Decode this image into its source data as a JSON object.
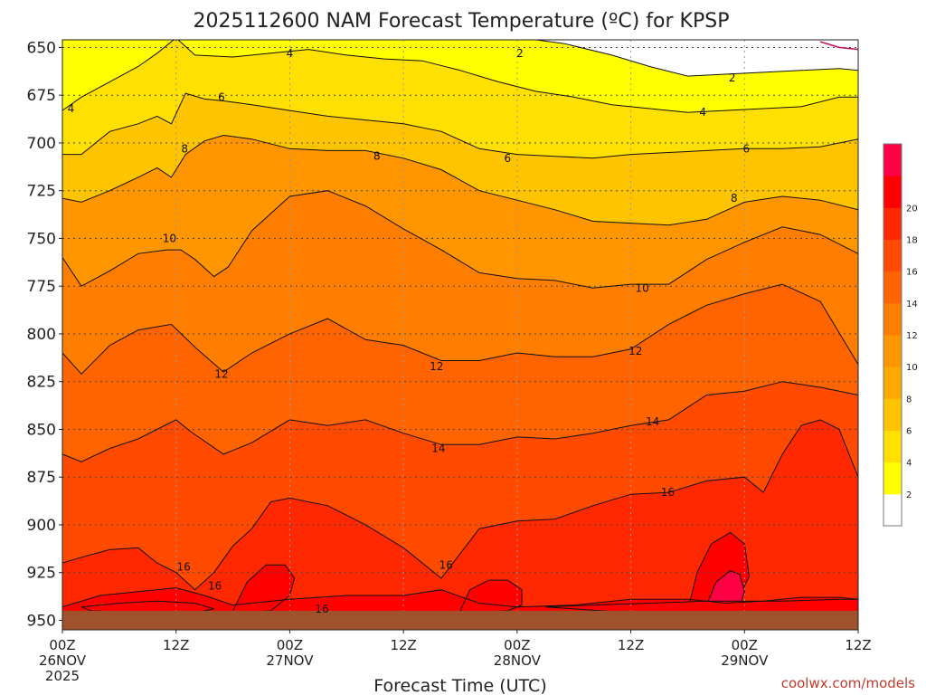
{
  "chart_data": {
    "type": "heatmap",
    "title": "2025112600 NAM Forecast Temperature (ºC) for KPSP",
    "xlabel": "Forecast Time (UTC)",
    "ylabel": "",
    "credit": "coolwx.com/models",
    "x_ticks": [
      {
        "hours": 0,
        "line1": "00Z",
        "line2": "26NOV",
        "line3": "2025"
      },
      {
        "hours": 12,
        "line1": "12Z",
        "line2": "",
        "line3": ""
      },
      {
        "hours": 24,
        "line1": "00Z",
        "line2": "27NOV",
        "line3": ""
      },
      {
        "hours": 36,
        "line1": "12Z",
        "line2": "",
        "line3": ""
      },
      {
        "hours": 48,
        "line1": "00Z",
        "line2": "28NOV",
        "line3": ""
      },
      {
        "hours": 60,
        "line1": "12Z",
        "line2": "",
        "line3": ""
      },
      {
        "hours": 72,
        "line1": "00Z",
        "line2": "29NOV",
        "line3": ""
      },
      {
        "hours": 84,
        "line1": "12Z",
        "line2": "",
        "line3": ""
      }
    ],
    "xlim_hours": [
      0,
      84
    ],
    "y_ticks": [
      650,
      675,
      700,
      725,
      750,
      775,
      800,
      825,
      850,
      875,
      900,
      925,
      950
    ],
    "ylim_hpa": [
      646,
      955
    ],
    "grid": true,
    "colorbar": {
      "labels": [
        "2",
        "4",
        "6",
        "8",
        "10",
        "12",
        "14",
        "16",
        "18",
        "20"
      ],
      "colors": [
        "#ffffff",
        "#ffff00",
        "#ffe000",
        "#ffc400",
        "#ffaa00",
        "#ff9600",
        "#ff7e00",
        "#ff6400",
        "#ff4a00",
        "#ff2800",
        "#ff0000",
        "#ff0044"
      ]
    },
    "surface_hpa": 945,
    "surface_color": "#a0522d",
    "isotherms": [
      {
        "value": "2",
        "t": [
          50,
          53,
          58,
          62,
          66,
          70,
          74,
          78,
          82,
          84
        ],
        "p": [
          646,
          648,
          654,
          660,
          665,
          664,
          663,
          662,
          661,
          662
        ],
        "labels": [
          [
            48.3,
            653
          ],
          [
            70.7,
            666
          ]
        ]
      },
      {
        "value": "4",
        "t": [
          0,
          2,
          5,
          8,
          10,
          12,
          14,
          18,
          22,
          26,
          30,
          34,
          38,
          42,
          46,
          50,
          54,
          58,
          62,
          66,
          70,
          74,
          78,
          82,
          84
        ],
        "p": [
          683,
          676,
          668,
          660,
          653,
          645,
          654,
          655,
          653,
          651,
          654,
          656,
          657,
          662,
          668,
          673,
          676,
          680,
          682,
          684,
          683,
          682,
          681,
          676,
          676
        ],
        "labels": [
          [
            0.9,
            682
          ],
          [
            24.0,
            653
          ],
          [
            67.6,
            684
          ]
        ]
      },
      {
        "value": "6",
        "t": [
          0,
          2,
          5,
          8,
          10,
          11.5,
          13,
          15,
          17,
          20,
          24,
          28,
          32,
          36,
          40,
          44,
          48,
          52,
          56,
          60,
          64,
          68,
          72,
          76,
          80,
          84
        ],
        "p": [
          706,
          706,
          694,
          690,
          686,
          690,
          674,
          677,
          678,
          680,
          683,
          686,
          688,
          690,
          694,
          703,
          706,
          707,
          708,
          706,
          705,
          704,
          703,
          703,
          702,
          698
        ],
        "labels": [
          [
            16.8,
            676
          ],
          [
            47.0,
            708
          ],
          [
            72.2,
            703
          ]
        ]
      },
      {
        "value": "8",
        "t": [
          0,
          2,
          5,
          8,
          10,
          11.5,
          13,
          15,
          17,
          20,
          24,
          28,
          32,
          36,
          40,
          44,
          48,
          52,
          56,
          60,
          64,
          68,
          72,
          76,
          80,
          84
        ],
        "p": [
          729,
          731,
          725,
          718,
          713,
          718,
          706,
          699,
          696,
          698,
          703,
          704,
          704,
          708,
          714,
          725,
          730,
          735,
          741,
          742,
          743,
          740,
          731,
          728,
          730,
          735
        ],
        "labels": [
          [
            12.9,
            703
          ],
          [
            33.2,
            707
          ],
          [
            70.9,
            729
          ]
        ]
      },
      {
        "value": "10",
        "t": [
          0,
          2,
          5,
          8,
          11,
          12.5,
          14,
          16,
          17.5,
          20,
          24,
          28,
          32,
          36,
          40,
          44,
          48,
          52,
          56,
          60,
          64,
          68,
          72,
          76,
          80,
          84
        ],
        "p": [
          760,
          775,
          767,
          758,
          756,
          756,
          761,
          770,
          765,
          746,
          728,
          725,
          733,
          745,
          756,
          768,
          771,
          772,
          776,
          774,
          774,
          761,
          752,
          744,
          748,
          758
        ],
        "labels": [
          [
            11.3,
            750
          ],
          [
            61.2,
            776
          ]
        ]
      },
      {
        "value": "12",
        "t": [
          0,
          2,
          5,
          8,
          11.5,
          14,
          17,
          20,
          24,
          28,
          32,
          36,
          40,
          44,
          48,
          52,
          56,
          60,
          64,
          68,
          72,
          76,
          80,
          84
        ],
        "p": [
          810,
          821,
          806,
          798,
          795,
          807,
          820,
          810,
          800,
          792,
          803,
          806,
          814,
          814,
          810,
          812,
          812,
          808,
          795,
          785,
          779,
          774,
          783,
          816
        ],
        "labels": [
          [
            16.8,
            821
          ],
          [
            39.5,
            817
          ],
          [
            60.5,
            809
          ]
        ]
      },
      {
        "value": "14",
        "t": [
          0,
          2,
          5,
          8,
          12,
          13.5,
          17,
          20,
          24,
          28,
          32,
          36,
          40,
          44,
          48,
          52,
          56,
          60,
          64,
          68,
          72,
          76,
          80,
          84
        ],
        "p": [
          863,
          867,
          860,
          855,
          845,
          851,
          863,
          857,
          845,
          848,
          845,
          852,
          858,
          858,
          854,
          855,
          852,
          848,
          845,
          832,
          830,
          825,
          828,
          832
        ],
        "labels": [
          [
            39.7,
            860
          ],
          [
            62.3,
            846
          ]
        ]
      },
      {
        "value": "16",
        "t": [
          0,
          2,
          5,
          8,
          10,
          12,
          14,
          16,
          18,
          20,
          22,
          24,
          28,
          32,
          36,
          40,
          44,
          48,
          52,
          56,
          60,
          64,
          68,
          72,
          74,
          76,
          78,
          80,
          82,
          84
        ],
        "p": [
          920,
          917,
          913,
          912,
          920,
          925,
          934,
          925,
          911,
          902,
          888,
          886,
          890,
          900,
          912,
          928,
          902,
          898,
          897,
          890,
          884,
          883,
          877,
          875,
          883,
          863,
          848,
          845,
          850,
          875
        ],
        "labels": [
          [
            12.8,
            922
          ],
          [
            40.5,
            921
          ],
          [
            63.9,
            883
          ]
        ]
      },
      {
        "value": "16",
        "t": [
          0,
          4,
          8,
          12,
          15,
          18,
          24,
          30,
          36,
          40,
          44,
          48,
          54,
          60,
          66,
          70,
          74,
          78,
          82,
          84
        ],
        "p": [
          943,
          937,
          935,
          933,
          937,
          942,
          939,
          937,
          937,
          934,
          941,
          943,
          942,
          939,
          939,
          941,
          940,
          938,
          938,
          939
        ],
        "labels": [
          [
            16.1,
            932
          ],
          [
            27.4,
            944
          ]
        ]
      }
    ],
    "warm_cores": [
      {
        "name": "18",
        "t": [
          18,
          19.5,
          21.5,
          23.5,
          24.5,
          24,
          22,
          18.5
        ],
        "p": [
          945,
          930,
          921,
          921,
          928,
          937,
          945,
          946
        ]
      },
      {
        "name": "18",
        "t": [
          42,
          43,
          45,
          47,
          48.5,
          48.5,
          47,
          43.5
        ],
        "p": [
          945,
          934,
          929,
          929,
          934,
          942,
          945,
          946
        ]
      },
      {
        "name": "18",
        "t": [
          66,
          67,
          68.5,
          70.5,
          72,
          72.5,
          71,
          67
        ],
        "p": [
          945,
          925,
          910,
          904,
          910,
          927,
          942,
          946
        ]
      },
      {
        "name": "20",
        "t": [
          68,
          69,
          70.5,
          71.5,
          72,
          71.5,
          68.5
        ],
        "p": [
          942,
          930,
          924,
          926,
          935,
          943,
          945
        ]
      },
      {
        "name": "18",
        "t": [
          2,
          6,
          10,
          14,
          16,
          14,
          8,
          3
        ],
        "p": [
          943,
          941,
          940,
          941,
          944,
          946,
          946,
          945
        ]
      },
      {
        "name": "18",
        "t": [
          51,
          56,
          62,
          68,
          76,
          82,
          84,
          84,
          76,
          60
        ],
        "p": [
          943,
          942,
          941,
          940,
          940,
          939,
          939,
          946,
          946,
          946
        ]
      }
    ],
    "corner_warm_line": {
      "t": [
        80,
        82,
        84
      ],
      "p": [
        647,
        650,
        651
      ]
    }
  }
}
